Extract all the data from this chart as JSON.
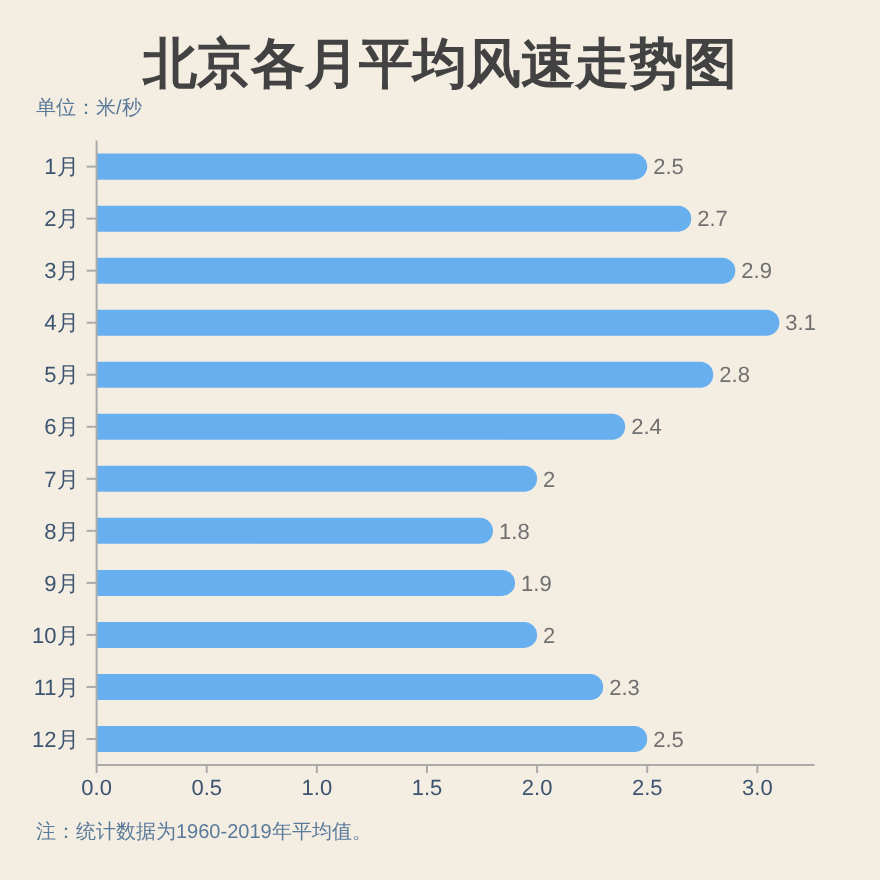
{
  "chart_data": {
    "type": "bar",
    "orientation": "horizontal",
    "title": "北京各月平均风速走势图",
    "subtitle": "单位：米/秒",
    "categories": [
      "1月",
      "2月",
      "3月",
      "4月",
      "5月",
      "6月",
      "7月",
      "8月",
      "9月",
      "10月",
      "11月",
      "12月"
    ],
    "values": [
      2.5,
      2.7,
      2.9,
      3.1,
      2.8,
      2.4,
      2,
      1.8,
      1.9,
      2,
      2.3,
      2.5
    ],
    "color": "#68aff0",
    "xlim": [
      0,
      3.26
    ],
    "xticks": [
      {
        "value": 0,
        "label": "0.0"
      },
      {
        "value": 0.5,
        "label": "0.5"
      },
      {
        "value": 1,
        "label": "1.0"
      },
      {
        "value": 1.5,
        "label": "1.5"
      },
      {
        "value": 2,
        "label": "2.0"
      },
      {
        "value": 2.5,
        "label": "2.5"
      },
      {
        "value": 3,
        "label": "3.0"
      }
    ],
    "data_labels": true,
    "annotations": [
      "注：统计数据为1960-2019年平均值。"
    ]
  }
}
